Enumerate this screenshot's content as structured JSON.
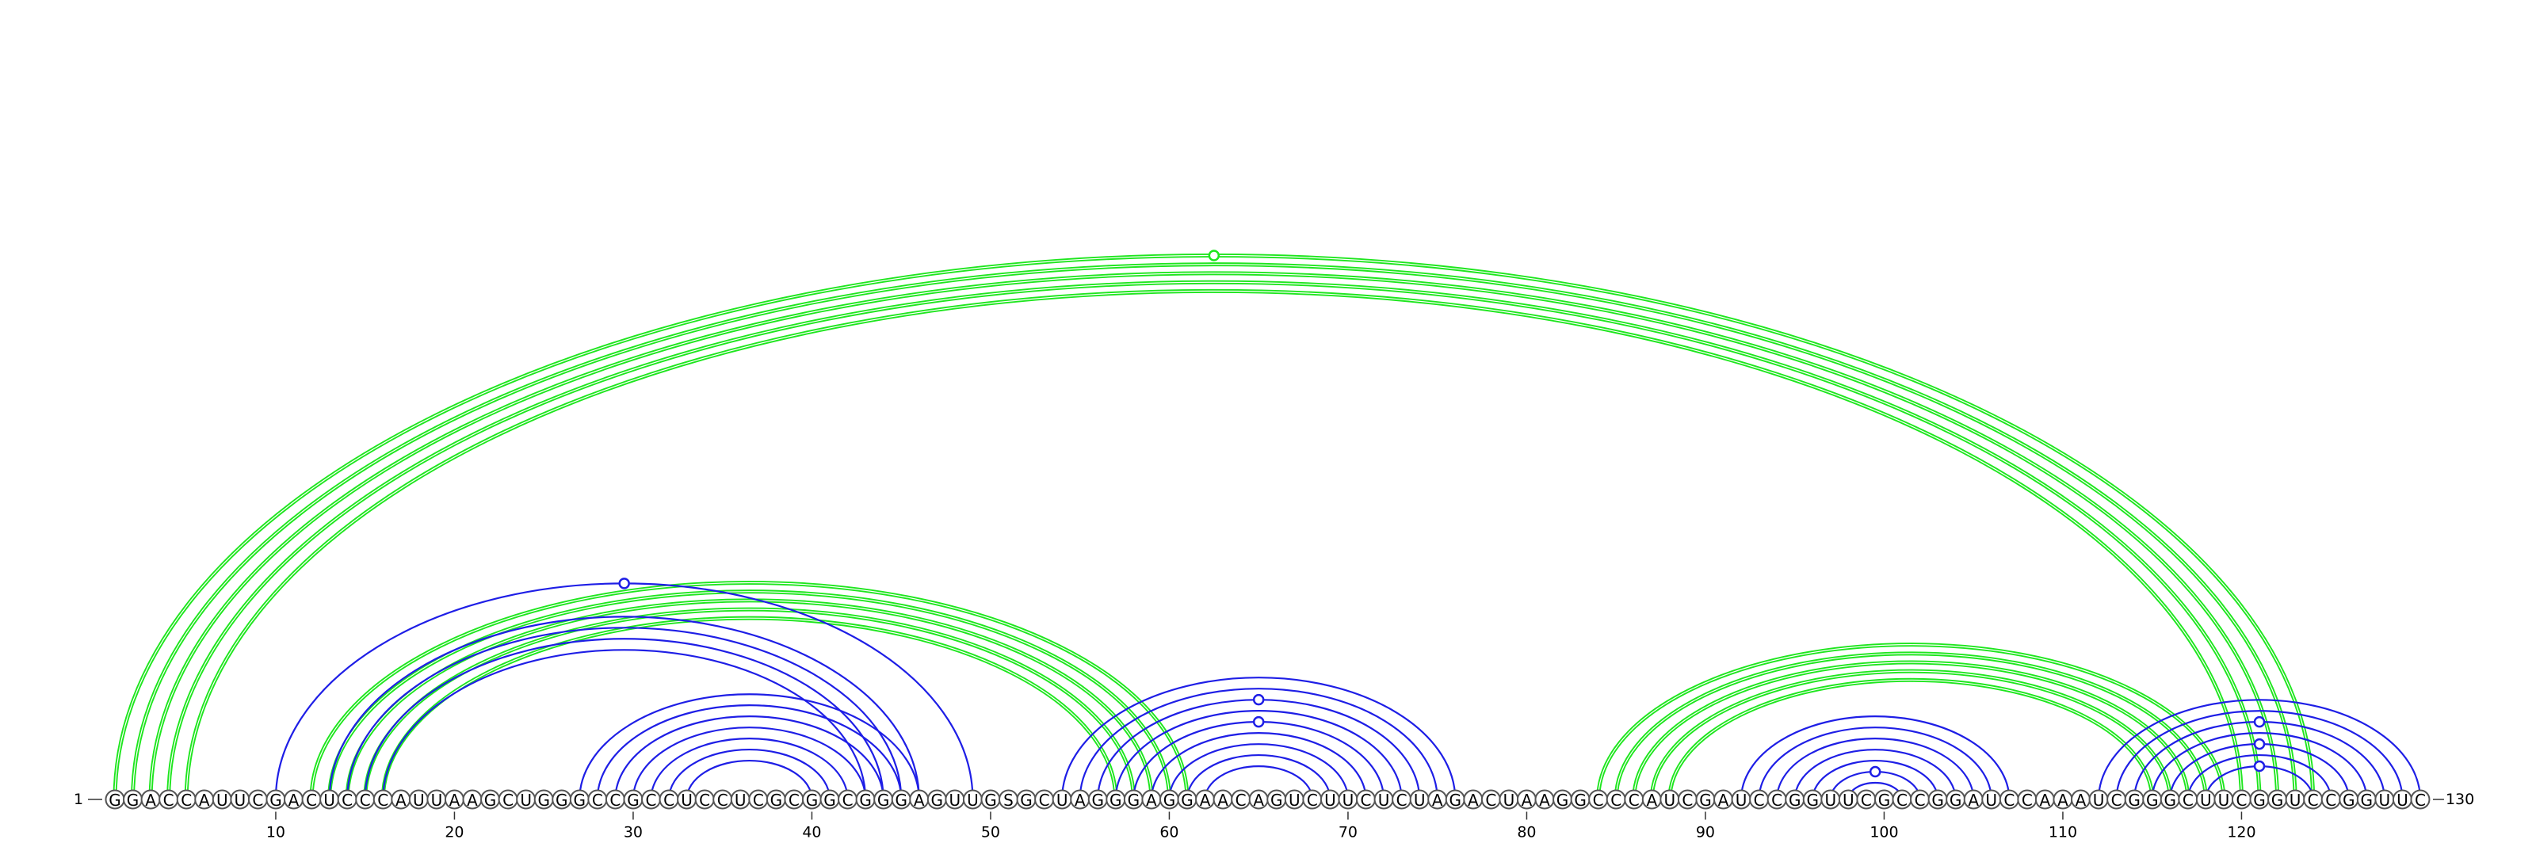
{
  "sequence": "GGACCAUUCGACUCCCAUUAAGCUGGGCCGCCUCCUCGCGGCGGGAGUUGSGCUAGGGAGGAACAGUCUUCUCUAGACUAAGGCCCAUCGAUCCGGUUCGCCGGAUCCAAAUCGGGCUUCGGUCCGGUUC",
  "start_label": "1",
  "end_label": "130",
  "ticks": [
    10,
    20,
    30,
    40,
    50,
    60,
    70,
    80,
    90,
    100,
    110,
    120
  ],
  "colors": {
    "blue": "#1e1ee6",
    "green": "#1ee61e"
  },
  "blue_pairs": [
    [
      10,
      49
    ],
    [
      13,
      46
    ],
    [
      14,
      45
    ],
    [
      15,
      44
    ],
    [
      16,
      43
    ],
    [
      27,
      46
    ],
    [
      28,
      45
    ],
    [
      29,
      44
    ],
    [
      30,
      43
    ],
    [
      31,
      42
    ],
    [
      32,
      41
    ],
    [
      33,
      40
    ],
    [
      54,
      76
    ],
    [
      55,
      75
    ],
    [
      56,
      74
    ],
    [
      57,
      73
    ],
    [
      58,
      72
    ],
    [
      59,
      71
    ],
    [
      60,
      70
    ],
    [
      61,
      69
    ],
    [
      62,
      68
    ],
    [
      92,
      107
    ],
    [
      93,
      106
    ],
    [
      94,
      105
    ],
    [
      95,
      104
    ],
    [
      96,
      103
    ],
    [
      97,
      102
    ],
    [
      98,
      101
    ],
    [
      112,
      130
    ],
    [
      113,
      129
    ],
    [
      114,
      128
    ],
    [
      115,
      127
    ],
    [
      116,
      126
    ],
    [
      117,
      125
    ],
    [
      118,
      124
    ]
  ],
  "green_pairs": [
    [
      1,
      124
    ],
    [
      2,
      123
    ],
    [
      3,
      122
    ],
    [
      4,
      121
    ],
    [
      5,
      120
    ],
    [
      12,
      61
    ],
    [
      13,
      60
    ],
    [
      14,
      59
    ],
    [
      15,
      58
    ],
    [
      16,
      57
    ],
    [
      84,
      119
    ],
    [
      85,
      118
    ],
    [
      86,
      117
    ],
    [
      87,
      116
    ],
    [
      88,
      115
    ]
  ],
  "markers": [
    {
      "color": "green",
      "pair": [
        1,
        124
      ]
    },
    {
      "color": "blue",
      "pair": [
        10,
        49
      ]
    },
    {
      "color": "blue",
      "pair": [
        56,
        74
      ]
    },
    {
      "color": "blue",
      "pair": [
        58,
        72
      ]
    },
    {
      "color": "blue",
      "pair": [
        97,
        102
      ]
    },
    {
      "color": "blue",
      "pair": [
        114,
        128
      ]
    },
    {
      "color": "blue",
      "pair": [
        116,
        126
      ]
    },
    {
      "color": "blue",
      "pair": [
        118,
        124
      ]
    }
  ]
}
